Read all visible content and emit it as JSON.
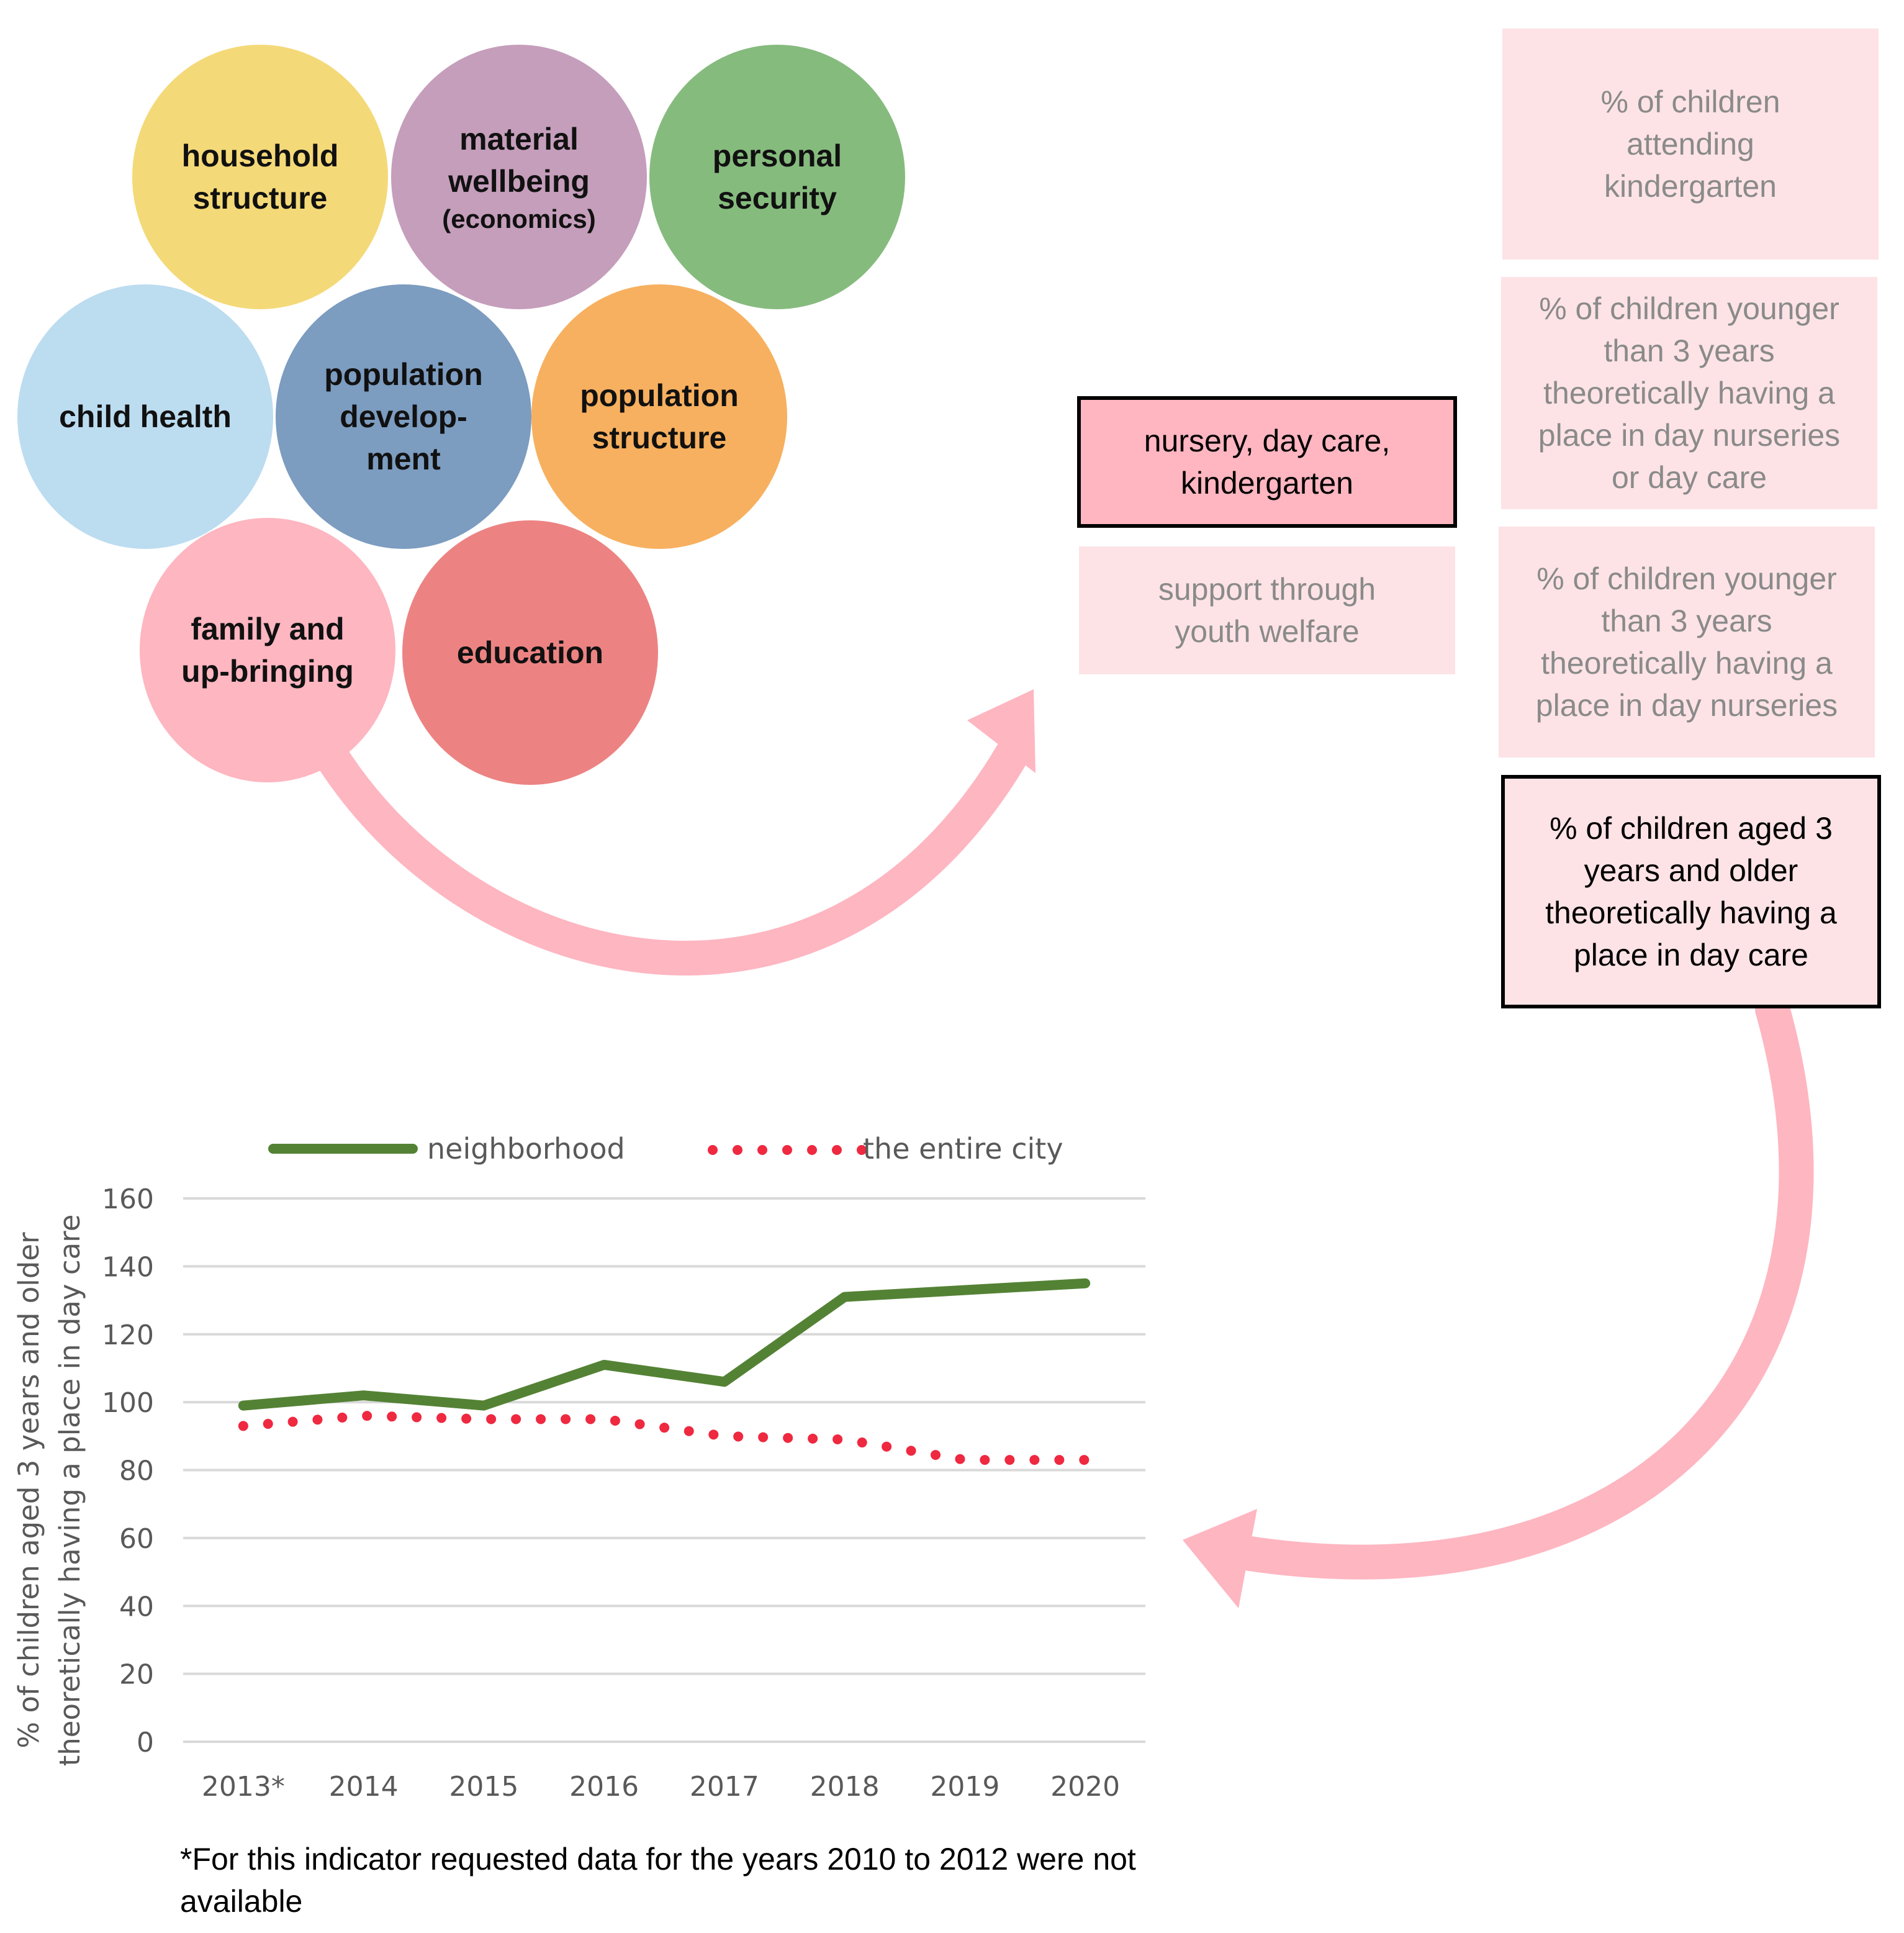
{
  "domains": {
    "household_structure": "household structure",
    "material_wellbeing": "material wellbeing",
    "material_wellbeing_sub": "(economics)",
    "personal_security": "personal security",
    "child_health": "child health",
    "population_development": "population develop-ment",
    "population_structure": "population structure",
    "family_upbringing": "family and up-bringing",
    "education": "education"
  },
  "subdomains": {
    "nursery": "nursery, day care, kindergarten",
    "youth_welfare": "support through youth welfare"
  },
  "indicators": {
    "kindergarten": "% of children attending kindergarten",
    "under3_nursery_daycare": "% of children younger than 3 years theoretically having a place in day nurseries or day care",
    "under3_nursery": "% of children younger than 3 years theoretically having a place in day nurseries",
    "over3_daycare": "% of children aged 3 years and older theoretically having a place in day care"
  },
  "colors": {
    "household": "#f4d978",
    "material": "#c59ebb",
    "security": "#86bb7e",
    "health": "#bcdcf0",
    "popdev": "#7c9cc0",
    "popstruct": "#f7b05f",
    "family": "#feb6c1",
    "education": "#ec8382",
    "arrow": "#feb6c1",
    "series_neighborhood": "#548235",
    "series_city": "#ee2940"
  },
  "chart_data": {
    "type": "line",
    "categories": [
      "2013*",
      "2014",
      "2015",
      "2016",
      "2017",
      "2018",
      "2019",
      "2020"
    ],
    "series": [
      {
        "name": "neighborhood",
        "style": "solid",
        "values": [
          99,
          102,
          99,
          111,
          106,
          131,
          133,
          135
        ]
      },
      {
        "name": "the entire city",
        "style": "dotted",
        "values": [
          93,
          96,
          95,
          95,
          90,
          89,
          83,
          83
        ]
      }
    ],
    "ylabel_line1": "% of children aged 3 years and older",
    "ylabel_line2": "theoretically  having a place in day care",
    "xlabel": "",
    "ylim": [
      0,
      160
    ],
    "yticks": [
      "0",
      "20",
      "40",
      "60",
      "80",
      "100",
      "120",
      "140",
      "160"
    ],
    "grid": true,
    "legend": "top"
  },
  "footnote": "*For this indicator requested data for the years 2010 to 2012 were not available"
}
